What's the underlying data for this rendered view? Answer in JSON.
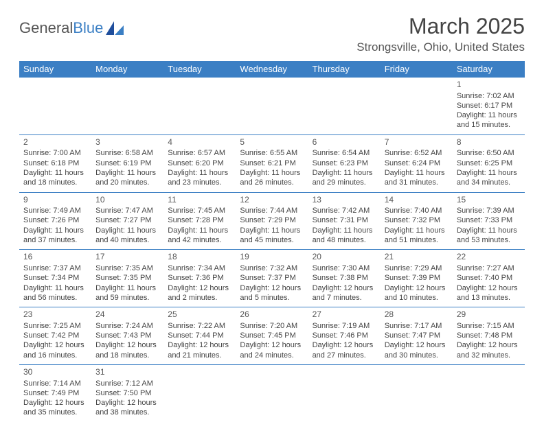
{
  "logo": {
    "text_a": "General",
    "text_b": "Blue"
  },
  "title": "March 2025",
  "location": "Strongsville, Ohio, United States",
  "colors": {
    "header_bg": "#3b7fc4",
    "header_text": "#ffffff",
    "cell_border": "#3b7fc4",
    "blank_bg": "#f0f0f0",
    "text": "#444444",
    "title_text": "#444444"
  },
  "day_headers": [
    "Sunday",
    "Monday",
    "Tuesday",
    "Wednesday",
    "Thursday",
    "Friday",
    "Saturday"
  ],
  "weeks": [
    [
      null,
      null,
      null,
      null,
      null,
      null,
      {
        "n": "1",
        "sr": "7:02 AM",
        "ss": "6:17 PM",
        "dl": "11 hours and 15 minutes."
      }
    ],
    [
      {
        "n": "2",
        "sr": "7:00 AM",
        "ss": "6:18 PM",
        "dl": "11 hours and 18 minutes."
      },
      {
        "n": "3",
        "sr": "6:58 AM",
        "ss": "6:19 PM",
        "dl": "11 hours and 20 minutes."
      },
      {
        "n": "4",
        "sr": "6:57 AM",
        "ss": "6:20 PM",
        "dl": "11 hours and 23 minutes."
      },
      {
        "n": "5",
        "sr": "6:55 AM",
        "ss": "6:21 PM",
        "dl": "11 hours and 26 minutes."
      },
      {
        "n": "6",
        "sr": "6:54 AM",
        "ss": "6:23 PM",
        "dl": "11 hours and 29 minutes."
      },
      {
        "n": "7",
        "sr": "6:52 AM",
        "ss": "6:24 PM",
        "dl": "11 hours and 31 minutes."
      },
      {
        "n": "8",
        "sr": "6:50 AM",
        "ss": "6:25 PM",
        "dl": "11 hours and 34 minutes."
      }
    ],
    [
      {
        "n": "9",
        "sr": "7:49 AM",
        "ss": "7:26 PM",
        "dl": "11 hours and 37 minutes."
      },
      {
        "n": "10",
        "sr": "7:47 AM",
        "ss": "7:27 PM",
        "dl": "11 hours and 40 minutes."
      },
      {
        "n": "11",
        "sr": "7:45 AM",
        "ss": "7:28 PM",
        "dl": "11 hours and 42 minutes."
      },
      {
        "n": "12",
        "sr": "7:44 AM",
        "ss": "7:29 PM",
        "dl": "11 hours and 45 minutes."
      },
      {
        "n": "13",
        "sr": "7:42 AM",
        "ss": "7:31 PM",
        "dl": "11 hours and 48 minutes."
      },
      {
        "n": "14",
        "sr": "7:40 AM",
        "ss": "7:32 PM",
        "dl": "11 hours and 51 minutes."
      },
      {
        "n": "15",
        "sr": "7:39 AM",
        "ss": "7:33 PM",
        "dl": "11 hours and 53 minutes."
      }
    ],
    [
      {
        "n": "16",
        "sr": "7:37 AM",
        "ss": "7:34 PM",
        "dl": "11 hours and 56 minutes."
      },
      {
        "n": "17",
        "sr": "7:35 AM",
        "ss": "7:35 PM",
        "dl": "11 hours and 59 minutes."
      },
      {
        "n": "18",
        "sr": "7:34 AM",
        "ss": "7:36 PM",
        "dl": "12 hours and 2 minutes."
      },
      {
        "n": "19",
        "sr": "7:32 AM",
        "ss": "7:37 PM",
        "dl": "12 hours and 5 minutes."
      },
      {
        "n": "20",
        "sr": "7:30 AM",
        "ss": "7:38 PM",
        "dl": "12 hours and 7 minutes."
      },
      {
        "n": "21",
        "sr": "7:29 AM",
        "ss": "7:39 PM",
        "dl": "12 hours and 10 minutes."
      },
      {
        "n": "22",
        "sr": "7:27 AM",
        "ss": "7:40 PM",
        "dl": "12 hours and 13 minutes."
      }
    ],
    [
      {
        "n": "23",
        "sr": "7:25 AM",
        "ss": "7:42 PM",
        "dl": "12 hours and 16 minutes."
      },
      {
        "n": "24",
        "sr": "7:24 AM",
        "ss": "7:43 PM",
        "dl": "12 hours and 18 minutes."
      },
      {
        "n": "25",
        "sr": "7:22 AM",
        "ss": "7:44 PM",
        "dl": "12 hours and 21 minutes."
      },
      {
        "n": "26",
        "sr": "7:20 AM",
        "ss": "7:45 PM",
        "dl": "12 hours and 24 minutes."
      },
      {
        "n": "27",
        "sr": "7:19 AM",
        "ss": "7:46 PM",
        "dl": "12 hours and 27 minutes."
      },
      {
        "n": "28",
        "sr": "7:17 AM",
        "ss": "7:47 PM",
        "dl": "12 hours and 30 minutes."
      },
      {
        "n": "29",
        "sr": "7:15 AM",
        "ss": "7:48 PM",
        "dl": "12 hours and 32 minutes."
      }
    ],
    [
      {
        "n": "30",
        "sr": "7:14 AM",
        "ss": "7:49 PM",
        "dl": "12 hours and 35 minutes."
      },
      {
        "n": "31",
        "sr": "7:12 AM",
        "ss": "7:50 PM",
        "dl": "12 hours and 38 minutes."
      },
      null,
      null,
      null,
      null,
      null
    ]
  ],
  "labels": {
    "sunrise": "Sunrise: ",
    "sunset": "Sunset: ",
    "daylight": "Daylight: "
  }
}
